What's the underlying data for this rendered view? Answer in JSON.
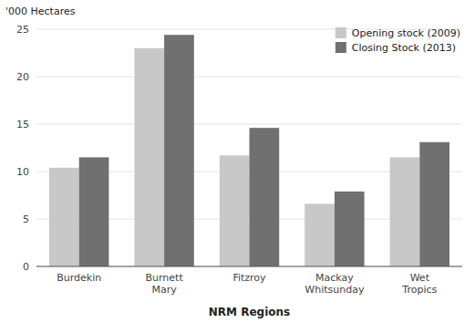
{
  "chart_data": {
    "type": "bar",
    "ylabel": "'000 Hectares",
    "xlabel": "NRM Regions",
    "categories": [
      "Burdekin",
      "Burnett\nMary",
      "Fitzroy",
      "Mackay\nWhitsunday",
      "Wet\nTropics"
    ],
    "series": [
      {
        "name": "Opening stock (2009)",
        "color": "#c8c8c8",
        "values": [
          10.4,
          23.0,
          11.7,
          6.6,
          11.5
        ]
      },
      {
        "name": "Closing Stock (2013)",
        "color": "#707070",
        "values": [
          11.5,
          24.4,
          14.6,
          7.9,
          13.1
        ]
      }
    ],
    "ylim": [
      0,
      25
    ],
    "yticks": [
      0,
      5,
      10,
      15,
      20,
      25
    ],
    "grid": true,
    "legend": "upper right"
  }
}
